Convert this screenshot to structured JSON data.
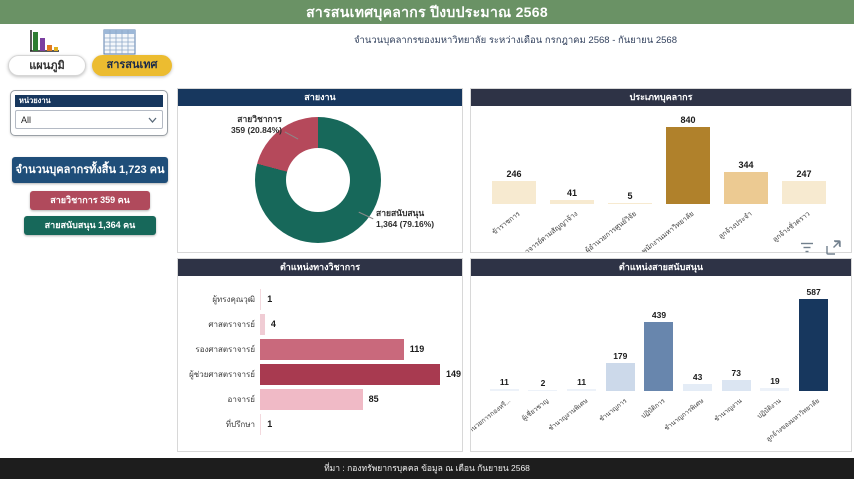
{
  "header": {
    "title": "สารสนเทศบุคลากร  ปีงบประมาณ  2568",
    "bg": "#6a9265"
  },
  "subtitle": "จำนวนบุคลากรของมหาวิทยาลัย  ระหว่างเดือน  กรกฎาคม  2568  -  กันยายน  2568",
  "tabs": {
    "chart_label": "แผนภูมิ",
    "info_label": "สารสนเทศ",
    "active_bg": "#ecbc30",
    "icons": [
      "bar-chart-icon",
      "table-icon"
    ]
  },
  "filter": {
    "label": "หน่วยงาน",
    "value": "All",
    "label_bg": "#17375e"
  },
  "stats": {
    "total": {
      "text": "จำนวนบุคลากรทั้งสิ้น 1,723 คน",
      "bg": "#1f4e79"
    },
    "academic": {
      "text": "สายวิชาการ 359 คน",
      "bg": "#b04a5c"
    },
    "support": {
      "text": "สายสนับสนุน 1,364 คน",
      "bg": "#17685a"
    }
  },
  "chart_data": [
    {
      "type": "donut",
      "title": "สายงาน",
      "header_bg": "#17375e",
      "legend_position": "callout-labels",
      "slices": [
        {
          "label": "สายวิชาการ",
          "value": 359,
          "pct": 20.84,
          "display": "359 (20.84%)",
          "color": "#b5495b"
        },
        {
          "label": "สายสนับสนุน",
          "value": 1364,
          "pct": 79.16,
          "display": "1,364 (79.16%)",
          "color": "#17685a"
        }
      ]
    },
    {
      "type": "bar",
      "title": "ประเภทบุคลากร",
      "header_bg": "#2e3346",
      "categories": [
        "ข้าราชการ",
        "อาจารย์ตามสัญญาจ้าง",
        "ผู้อำนวยการศูนย์วิจัย",
        "พนักงานมหาวิทยาลัย",
        "ลูกจ้างประจำ",
        "ลูกจ้างชั่วคราว"
      ],
      "values": [
        246,
        41,
        5,
        840,
        344,
        247
      ],
      "colors": [
        "#f7ead0",
        "#f7ead0",
        "#f7ead0",
        "#b0812b",
        "#ecca92",
        "#f7ead0"
      ],
      "ylim": [
        0,
        840
      ],
      "grid": false,
      "value_labels": true
    },
    {
      "type": "bar-horizontal",
      "title": "ตำแหน่งทางวิชาการ",
      "header_bg": "#2e3346",
      "categories": [
        "ผู้ทรงคุณวุฒิ",
        "ศาสตราจารย์",
        "รองศาสตราจารย์",
        "ผู้ช่วยศาสตราจารย์",
        "อาจารย์",
        "ที่ปรึกษา"
      ],
      "values": [
        1,
        4,
        119,
        149,
        85,
        1
      ],
      "colors": [
        "#f3d9de",
        "#f0ccd4",
        "#c9697c",
        "#a83a50",
        "#f0bac6",
        "#f3d9de"
      ],
      "xlim": [
        0,
        149
      ],
      "grid": false,
      "value_labels": true
    },
    {
      "type": "bar",
      "title": "ตำแหน่งสายสนับสนุน",
      "header_bg": "#2e3346",
      "categories": [
        "ผู้อำนวยการกองหรื...",
        "ผู้เชี่ยวชาญ",
        "ชำนาญงานพิเศษ",
        "ชำนาญการ",
        "ปฏิบัติการ",
        "ชำนาญการพิเศษ",
        "ชำนาญงาน",
        "ปฏิบัติงาน",
        "ลูกจ้างของมหาวิทยาลัย"
      ],
      "values": [
        11,
        2,
        11,
        179,
        439,
        43,
        73,
        19,
        587
      ],
      "colors": [
        "#edf2f9",
        "#edf2f9",
        "#edf2f9",
        "#ccd9ea",
        "#6886ad",
        "#e4ecf6",
        "#dbe5f2",
        "#edf2f9",
        "#17375e"
      ],
      "ylim": [
        0,
        587
      ],
      "grid": false,
      "value_labels": true
    }
  ],
  "toolbar_icons": [
    "filter-lines-icon",
    "expand-icon"
  ],
  "footer": {
    "source": "ที่มา :  กองทรัพยากรบุคคล ข้อมูล ณ เดือน  กันยายน 2568",
    "bg": "#1d1d1d"
  }
}
